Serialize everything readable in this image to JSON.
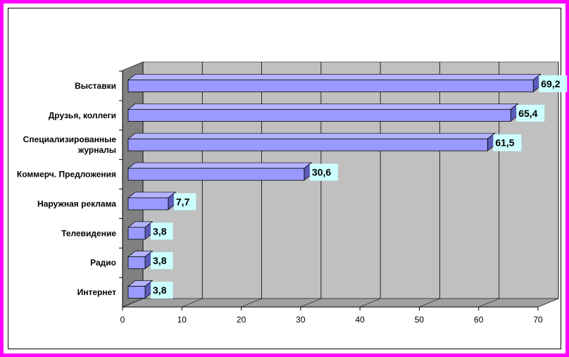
{
  "chart_data": {
    "type": "bar",
    "orientation": "horizontal",
    "categories": [
      "Выставки",
      "Друзья, коллеги",
      "Специализированные журналы",
      "Коммерч. Предложения",
      "Наружная реклама",
      "Телевидение",
      "Радио",
      "Интернет"
    ],
    "category_lines": [
      [
        "Выставки"
      ],
      [
        "Друзья, коллеги"
      ],
      [
        "Специализированные",
        "журналы"
      ],
      [
        "Коммерч. Предложения"
      ],
      [
        "Наружная реклама"
      ],
      [
        "Телевидение"
      ],
      [
        "Радио"
      ],
      [
        "Интернет"
      ]
    ],
    "values": [
      69.2,
      65.4,
      61.5,
      30.6,
      7.7,
      3.8,
      3.8,
      3.8
    ],
    "data_labels": [
      "69,2",
      "65,4",
      "61,5",
      "30,6",
      "7,7",
      "3,8",
      "3,8",
      "3,8"
    ],
    "xlim": [
      0,
      70
    ],
    "xticks": [
      "0",
      "10",
      "20",
      "30",
      "40",
      "50",
      "60",
      "70"
    ],
    "grid": true,
    "legend": "none",
    "colors": {
      "bar_front": "#9999ff",
      "bar_top": "#b3b3ff",
      "bar_side": "#5c5cb8",
      "wall": "#c0c0c0",
      "floor": "#a0a0a0",
      "label_bg": "#ccffff",
      "frame": "#ff00ff"
    }
  }
}
